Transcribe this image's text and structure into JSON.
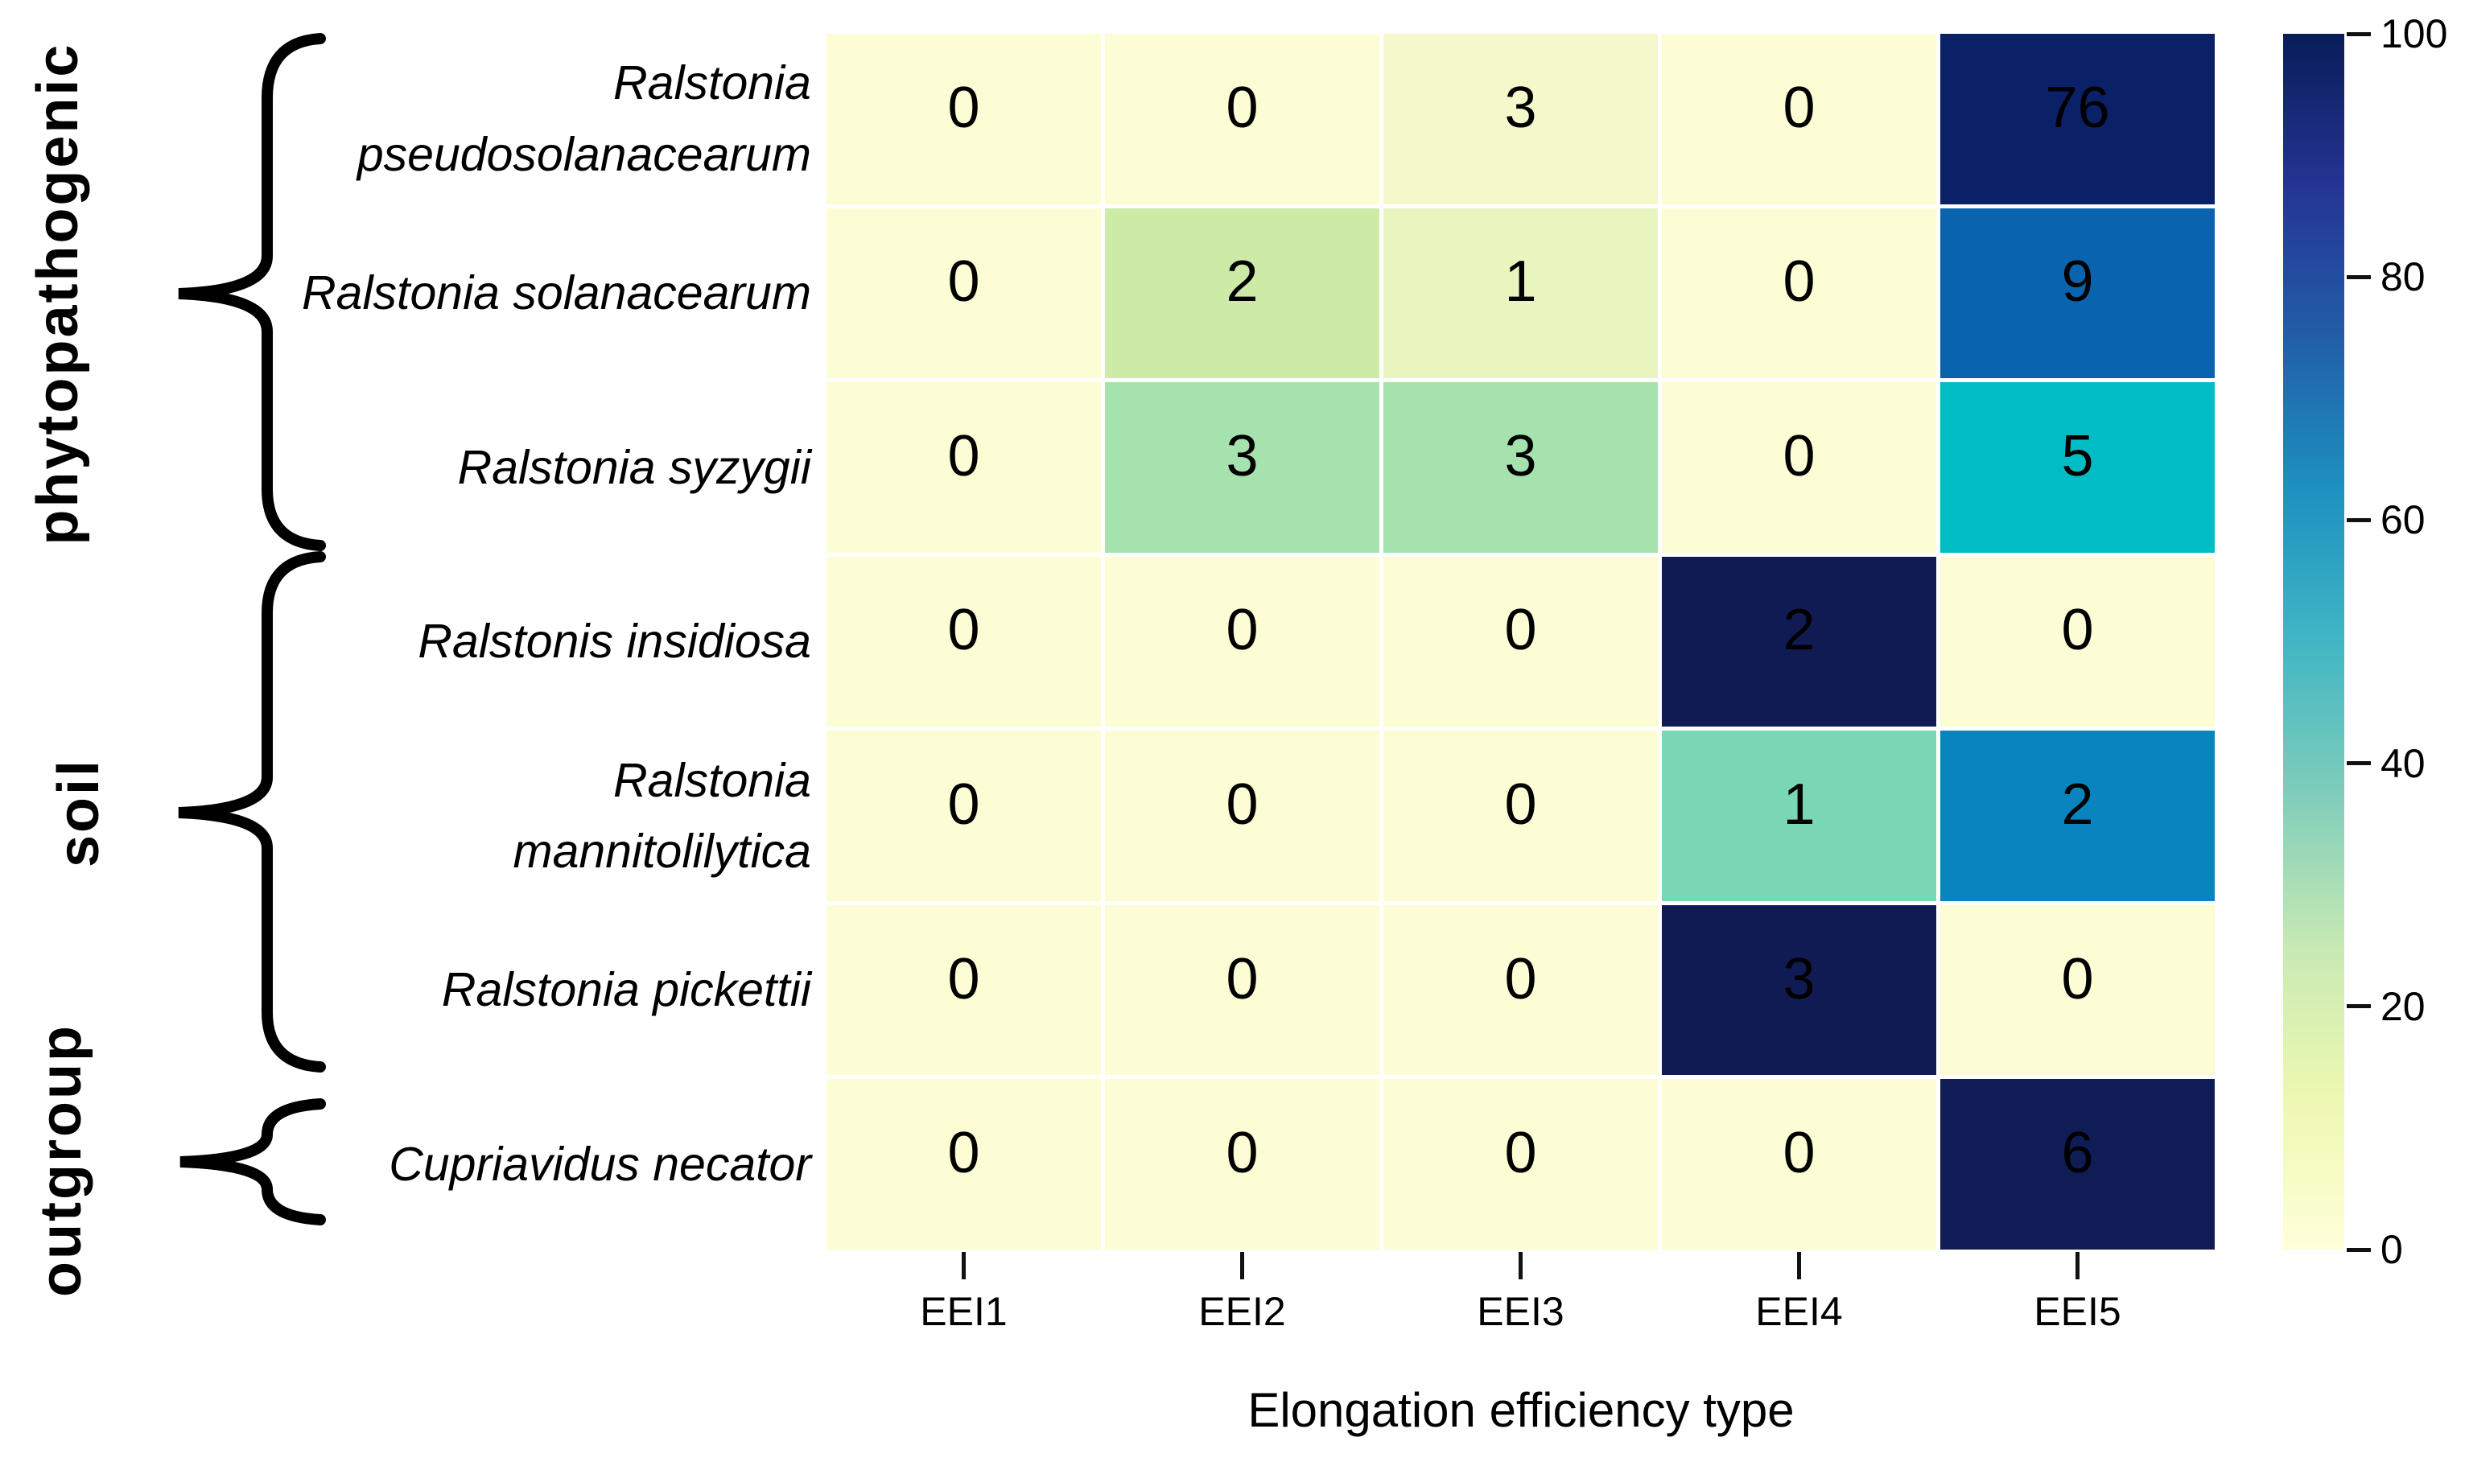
{
  "figure": {
    "background": "#FFFFFF",
    "text_color": "#000000",
    "grid_line_color": "#FFFFFF"
  },
  "chart_data": {
    "type": "heatmap",
    "title": "",
    "xlabel": "Elongation efficiency type",
    "ylabel": "",
    "x_categories": [
      "EEI1",
      "EEI2",
      "EEI3",
      "EEI4",
      "EEI5"
    ],
    "value_range": [
      0,
      100
    ],
    "colormap": "YlGnBu",
    "legend_position": "right-colorbar",
    "groups": [
      {
        "label": "phytopathogenic",
        "row_span": [
          0,
          2
        ]
      },
      {
        "label": "soil",
        "row_span": [
          3,
          5
        ]
      },
      {
        "label": "outgroup",
        "row_span": [
          6,
          6
        ]
      }
    ],
    "rows": [
      {
        "species": "Ralstonia\npseudosolanacearum",
        "group": "phytopathogenic",
        "counts": [
          0,
          0,
          3,
          0,
          76
        ],
        "row_percent": [
          0,
          0,
          3.8,
          0,
          96.2
        ],
        "cell_colors": [
          "#FCFDD4",
          "#FCFDD4",
          "#F4F9CC",
          "#FCFDD4",
          "#0A2067"
        ]
      },
      {
        "species": "Ralstonia solanacearum",
        "group": "phytopathogenic",
        "counts": [
          0,
          2,
          1,
          0,
          9
        ],
        "row_percent": [
          0,
          16.7,
          8.3,
          0,
          75
        ],
        "cell_colors": [
          "#FCFDD4",
          "#CDEBA7",
          "#E8F5BF",
          "#FCFDD4",
          "#0A63AE"
        ]
      },
      {
        "species": "Ralstonia syzygii",
        "group": "phytopathogenic",
        "counts": [
          0,
          3,
          3,
          0,
          5
        ],
        "row_percent": [
          0,
          27.3,
          27.3,
          0,
          45.5
        ],
        "cell_colors": [
          "#FCFDD4",
          "#A5E2AE",
          "#A5E2AE",
          "#FCFDD4",
          "#00BCC4"
        ]
      },
      {
        "species": "Ralstonis insidiosa",
        "group": "soil",
        "counts": [
          0,
          0,
          0,
          2,
          0
        ],
        "row_percent": [
          0,
          0,
          0,
          100,
          0
        ],
        "cell_colors": [
          "#FCFDD4",
          "#FCFDD4",
          "#FCFDD4",
          "#111B53",
          "#FCFDD4"
        ]
      },
      {
        "species": "Ralstonia\nmannitolilytica",
        "group": "soil",
        "counts": [
          0,
          0,
          0,
          1,
          2
        ],
        "row_percent": [
          0,
          0,
          0,
          33.3,
          66.7
        ],
        "cell_colors": [
          "#FCFDD4",
          "#FCFDD4",
          "#FCFDD4",
          "#79D7B4",
          "#0A84BE"
        ]
      },
      {
        "species": "Ralstonia pickettii",
        "group": "soil",
        "counts": [
          0,
          0,
          0,
          3,
          0
        ],
        "row_percent": [
          0,
          0,
          0,
          100,
          0
        ],
        "cell_colors": [
          "#FCFDD4",
          "#FCFDD4",
          "#FCFDD4",
          "#111B53",
          "#FCFDD4"
        ]
      },
      {
        "species": "Cupriavidus necator",
        "group": "outgroup",
        "counts": [
          0,
          0,
          0,
          0,
          6
        ],
        "row_percent": [
          0,
          0,
          0,
          0,
          100
        ],
        "cell_colors": [
          "#FCFDD4",
          "#FCFDD4",
          "#FCFDD4",
          "#FCFDD4",
          "#101C55"
        ]
      }
    ],
    "colorbar": {
      "tick_labels": [
        "100",
        "80",
        "60",
        "40",
        "20",
        "0"
      ],
      "tick_values": [
        100,
        80,
        60,
        40,
        20,
        0
      ],
      "gradient_top_to_bottom": [
        "#081D58",
        "#253494",
        "#225EA8",
        "#1D91C0",
        "#41B6C4",
        "#7FCDBB",
        "#C7E9B4",
        "#EDF8B1",
        "#FFFFD9"
      ]
    }
  }
}
